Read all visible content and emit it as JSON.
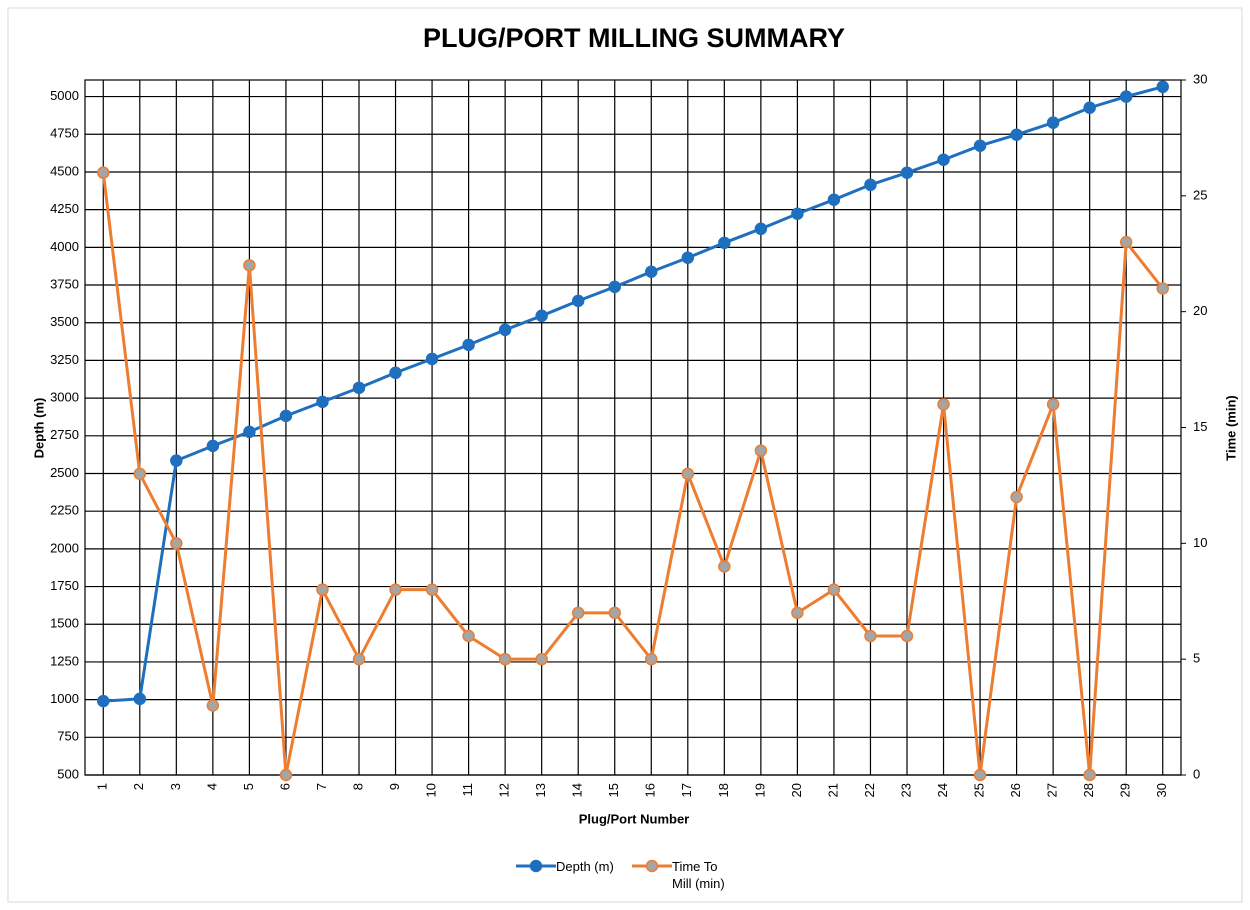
{
  "chart_data": {
    "type": "line",
    "title": "PLUG/PORT MILLING SUMMARY",
    "x_label": "Plug/Port Number",
    "y_label": "Depth (m)",
    "y2_label": "Time (min)",
    "categories": [
      1,
      2,
      3,
      4,
      5,
      6,
      7,
      8,
      9,
      10,
      11,
      12,
      13,
      14,
      15,
      16,
      17,
      18,
      19,
      20,
      21,
      22,
      23,
      24,
      25,
      26,
      27,
      28,
      29,
      30
    ],
    "series": [
      {
        "name": "Depth (m)",
        "color": "#1f6fbf",
        "marker_fill": "#1f6fbf",
        "values": [
          990,
          1005,
          2585,
          2683,
          2776,
          2882,
          2975,
          3068,
          3168,
          3260,
          3353,
          3453,
          3546,
          3645,
          3738,
          3838,
          3931,
          4030,
          4123,
          4223,
          4316,
          4415,
          4495,
          4581,
          4674,
          4747,
          4827,
          4926,
          5000,
          5065
        ]
      },
      {
        "name": "Time To Mill (min)",
        "color": "#ed7d31",
        "marker_fill": "#a5a5a5",
        "axis": "y2",
        "values": [
          26,
          13,
          10,
          3,
          22,
          0,
          8,
          5,
          8,
          8,
          6,
          5,
          5,
          7,
          7,
          5,
          13,
          9,
          14,
          7,
          8,
          6,
          6,
          16,
          0,
          12,
          16,
          0,
          23,
          21
        ]
      }
    ],
    "ylim": [
      500,
      5110
    ],
    "yticks": [
      500,
      750,
      1000,
      1250,
      1500,
      1750,
      2000,
      2250,
      2500,
      2750,
      3000,
      3250,
      3500,
      3750,
      4000,
      4250,
      4500,
      4750,
      5000
    ],
    "y2lim": [
      0,
      30
    ],
    "y2ticks": [
      0,
      5,
      10,
      15,
      20,
      25,
      30
    ],
    "grid": true,
    "legend": "bottom"
  }
}
